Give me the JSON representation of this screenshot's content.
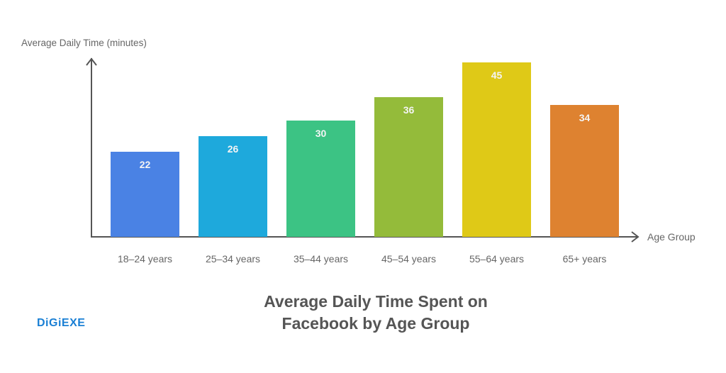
{
  "chart_data": {
    "type": "bar",
    "title": "Average Daily Time Spent on Facebook by Age Group",
    "title_lines": [
      "Average Daily Time Spent on",
      "Facebook by Age Group"
    ],
    "xlabel": "Age Group",
    "ylabel": "Average Daily Time (minutes)",
    "categories": [
      "18–24 years",
      "25–34 years",
      "35–44 years",
      "45–54 years",
      "55–64 years",
      "65+ years"
    ],
    "values": [
      22,
      26,
      30,
      36,
      45,
      34
    ],
    "colors": [
      "#4a82e4",
      "#1ea9dc",
      "#3cc384",
      "#94bb3a",
      "#dfc917",
      "#de8230"
    ],
    "ylim": [
      0,
      48
    ],
    "grid": false,
    "legend": null,
    "data_labels": true
  },
  "branding": {
    "logo_text": "DiGiEXE",
    "logo_color": "#1a7fd4"
  }
}
